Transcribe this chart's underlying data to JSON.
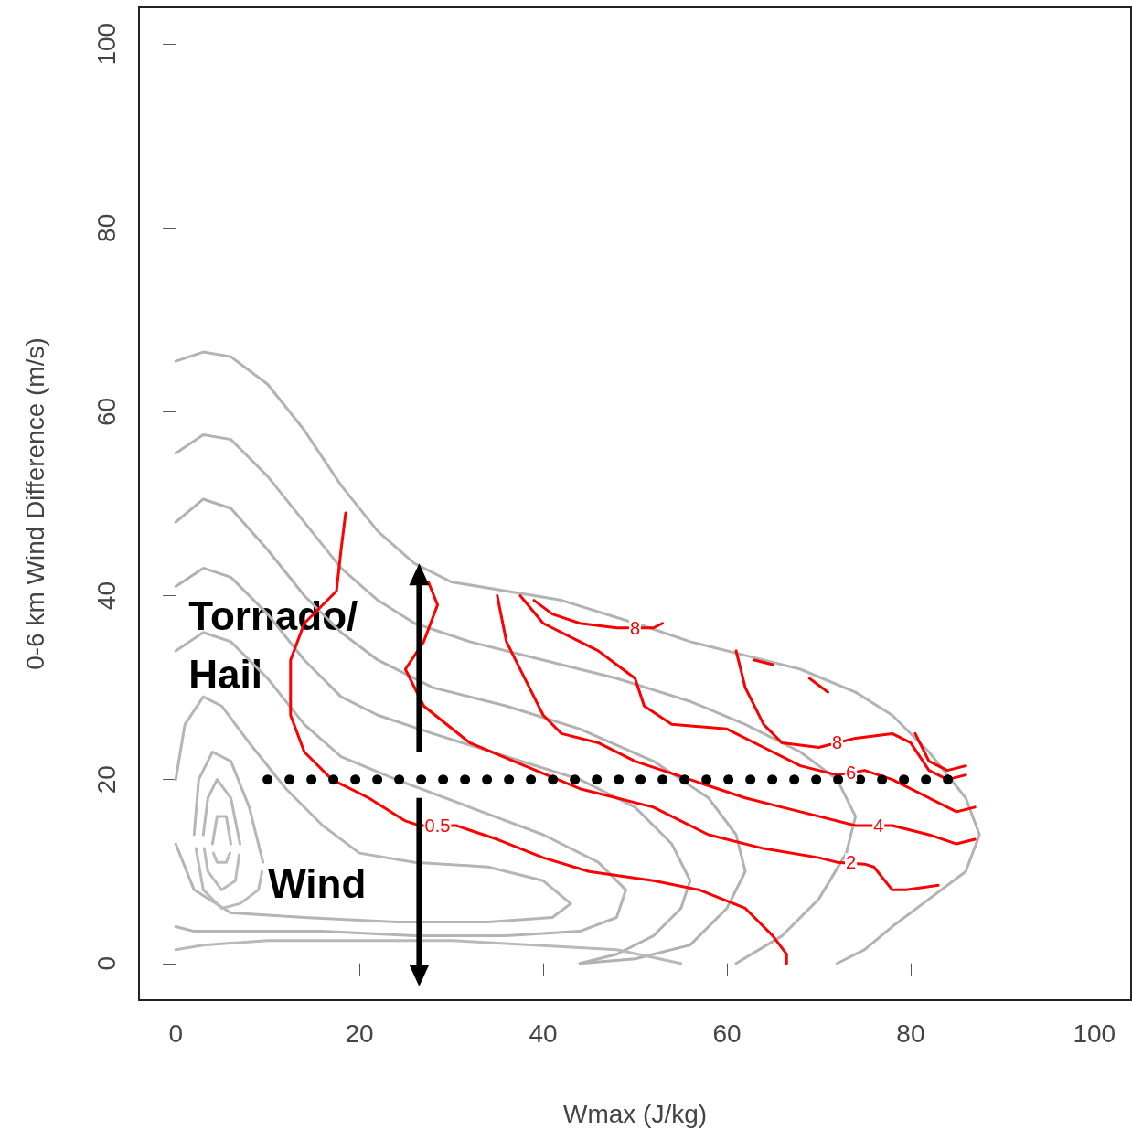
{
  "chart_data": {
    "type": "line",
    "xlabel": "Wmax (J/kg)",
    "ylabel": "0-6 km Wind Difference (m/s)",
    "xlim": [
      -4,
      104
    ],
    "ylim": [
      -4,
      104
    ],
    "xticks": [
      0,
      20,
      40,
      60,
      80,
      100
    ],
    "yticks": [
      0,
      20,
      40,
      60,
      80,
      100
    ],
    "grid": false,
    "marker": "none",
    "line_style": "solid",
    "series": [
      {
        "color": "#b3b3b3",
        "x": [
          0,
          3,
          6,
          10,
          14,
          18,
          22,
          26,
          30,
          36,
          42,
          51,
          56,
          62,
          68,
          74,
          78,
          82,
          86,
          87.5,
          86,
          82,
          78,
          75,
          72
        ],
        "values": [
          65.5,
          66.5,
          66,
          63,
          58,
          52,
          47,
          43.5,
          41.5,
          40.5,
          39.5,
          36.7,
          35,
          33.5,
          32,
          29.5,
          27,
          23,
          18,
          14,
          10,
          7,
          4,
          1.5,
          0
        ]
      },
      {
        "color": "#b3b3b3",
        "x": [
          0,
          3,
          6,
          10,
          14,
          18,
          22,
          26,
          32,
          40,
          48,
          56,
          62,
          68,
          72,
          74,
          73,
          70,
          66,
          61
        ],
        "values": [
          55.5,
          57.5,
          57,
          53,
          48,
          43,
          39.5,
          37,
          35,
          33,
          31,
          28.5,
          26,
          23,
          20,
          16,
          12,
          7,
          3,
          0
        ]
      },
      {
        "color": "#b1b1b1",
        "x": [
          0,
          3,
          6,
          10,
          14,
          18,
          22,
          28,
          36,
          44,
          52,
          58,
          61,
          62,
          60,
          56,
          50,
          44
        ],
        "values": [
          48,
          50.5,
          49.5,
          45,
          40,
          36,
          33,
          30,
          28,
          25.5,
          22,
          18,
          14,
          10,
          6,
          2,
          0.5,
          0
        ]
      },
      {
        "color": "#b2b2b2",
        "x": [
          0,
          3,
          6,
          10,
          14,
          18,
          22,
          28,
          36,
          44,
          50,
          54,
          56,
          55,
          52,
          48,
          44
        ],
        "values": [
          41,
          43,
          42,
          38,
          33,
          29,
          27,
          25,
          22.5,
          20,
          17,
          13,
          9,
          6,
          3,
          1,
          0
        ]
      },
      {
        "color": "#b4b4b4",
        "x": [
          0,
          3,
          6,
          10,
          14,
          18,
          24,
          32,
          40,
          46,
          49,
          48,
          44,
          36,
          26,
          16,
          8,
          2,
          0
        ],
        "values": [
          34,
          36,
          35,
          31,
          26,
          22.5,
          20,
          17,
          14,
          11,
          8,
          5,
          3.5,
          3,
          3,
          3.5,
          3.5,
          3.5,
          4
        ]
      },
      {
        "color": "#b5b5b5",
        "x": [
          0,
          1,
          3,
          5,
          8,
          12,
          16,
          20,
          26,
          34,
          40,
          43,
          41,
          34,
          24,
          14,
          6,
          2,
          0
        ],
        "values": [
          20,
          26,
          29,
          28,
          24,
          19,
          15,
          12,
          11,
          10.5,
          9,
          6.5,
          5,
          4.5,
          4.5,
          5,
          5.5,
          8,
          13
        ]
      },
      {
        "color": "#b6b6b6",
        "x": [
          2,
          2.5,
          4,
          6,
          8,
          9.5
        ],
        "values": [
          14,
          20,
          23,
          22,
          17,
          11
        ]
      },
      {
        "color": "#bababa",
        "x": [
          2.2,
          3,
          5,
          7,
          9,
          9.4
        ],
        "values": [
          12.5,
          8,
          6,
          6.5,
          8,
          10
        ]
      },
      {
        "color": "#b7b7b7",
        "x": [
          3,
          3.5,
          4.5,
          6,
          7
        ],
        "values": [
          14,
          18,
          20,
          18,
          13
        ]
      },
      {
        "color": "#bbbbbb",
        "x": [
          3.1,
          3.5,
          5,
          6.5,
          6.9
        ],
        "values": [
          12.5,
          10,
          8,
          9,
          11.8
        ]
      },
      {
        "color": "#b8b8b8",
        "x": [
          4,
          4.5,
          5.5,
          6
        ],
        "values": [
          13,
          16,
          16,
          13
        ]
      },
      {
        "color": "#bcbcbc",
        "x": [
          4.1,
          4.5,
          5.5,
          5.9
        ],
        "values": [
          12,
          11,
          11,
          12
        ]
      },
      {
        "color": "#b9b9b9",
        "x": [
          0,
          3,
          10,
          30,
          48,
          55
        ],
        "values": [
          1.5,
          2,
          2.5,
          2.5,
          1.5,
          0
        ]
      },
      {
        "color": "#ff0000",
        "x": [
          18.5,
          18,
          17.5,
          14,
          12.5,
          12.5,
          14,
          17,
          21,
          25,
          26.5,
          30.5,
          32,
          35,
          40,
          45,
          52,
          57,
          62,
          65,
          66.5,
          66.5
        ],
        "values": [
          49,
          45,
          40.5,
          37,
          33,
          27,
          23,
          20,
          18,
          15.5,
          15,
          15,
          14.5,
          13.5,
          11.5,
          10,
          9,
          8,
          6,
          3,
          1,
          0
        ]
      },
      {
        "color": "#fe0000",
        "x": [
          27.5,
          28.5,
          27,
          25,
          27,
          32,
          38,
          44,
          52,
          58,
          64,
          70,
          72,
          75,
          76,
          78,
          79.5,
          83
        ],
        "values": [
          41.5,
          39,
          35,
          32,
          28,
          24,
          21.5,
          19,
          17,
          14,
          12.5,
          11.5,
          11,
          10.8,
          10.5,
          8,
          8,
          8.5
        ]
      },
      {
        "color": "#fd0000",
        "x": [
          35,
          36,
          38,
          40,
          42,
          46,
          50,
          56,
          62,
          66,
          70,
          74,
          78,
          82,
          85,
          87
        ],
        "values": [
          40,
          35,
          31,
          27,
          25,
          24,
          22,
          20,
          18,
          17,
          16,
          15,
          15,
          14,
          13,
          13.5
        ]
      },
      {
        "color": "#fc0000",
        "x": [
          37.5,
          40,
          44,
          46,
          48,
          50,
          51,
          54,
          60,
          64,
          68,
          72,
          75,
          78,
          82,
          85,
          87
        ],
        "values": [
          40,
          37,
          35,
          34,
          32.5,
          31,
          28,
          26,
          25.5,
          23.5,
          21.5,
          20.5,
          21,
          20,
          18,
          16.5,
          17
        ]
      },
      {
        "color": "#fb0000",
        "x": [
          39,
          41,
          44,
          48,
          52,
          53
        ],
        "values": [
          39.5,
          38,
          37,
          36.5,
          36.5,
          37
        ]
      },
      {
        "color": "#fa0000",
        "x": [
          61,
          62,
          64,
          66,
          70,
          74,
          78,
          80,
          82,
          84,
          86
        ],
        "values": [
          34,
          30,
          26,
          24,
          23.5,
          24.5,
          25,
          24,
          21,
          20,
          20.5
        ]
      },
      {
        "color": "#f90000",
        "x": [
          63,
          65
        ],
        "values": [
          33,
          32.5
        ]
      },
      {
        "color": "#f80000",
        "x": [
          69,
          71
        ],
        "values": [
          31,
          29.5
        ]
      },
      {
        "color": "#f70000",
        "x": [
          80.5,
          82,
          84,
          86
        ],
        "values": [
          25,
          22,
          21,
          21.5
        ]
      },
      {
        "type": "line",
        "color": "#000000",
        "line_style": "dotted",
        "x": [
          10,
          85
        ],
        "values": [
          20,
          20
        ]
      }
    ],
    "annotations": [
      "Tornado/\nHail",
      "Wind",
      {
        "text": "0.5",
        "x": 28.5,
        "y": 15
      },
      {
        "text": "2",
        "x": 73.5,
        "y": 11
      },
      {
        "text": "4",
        "x": 76.5,
        "y": 15
      },
      {
        "text": "6",
        "x": 73.5,
        "y": 20.8
      },
      {
        "text": "8",
        "x": 50,
        "y": 36.5
      },
      {
        "text": "8",
        "x": 72,
        "y": 24
      }
    ]
  }
}
